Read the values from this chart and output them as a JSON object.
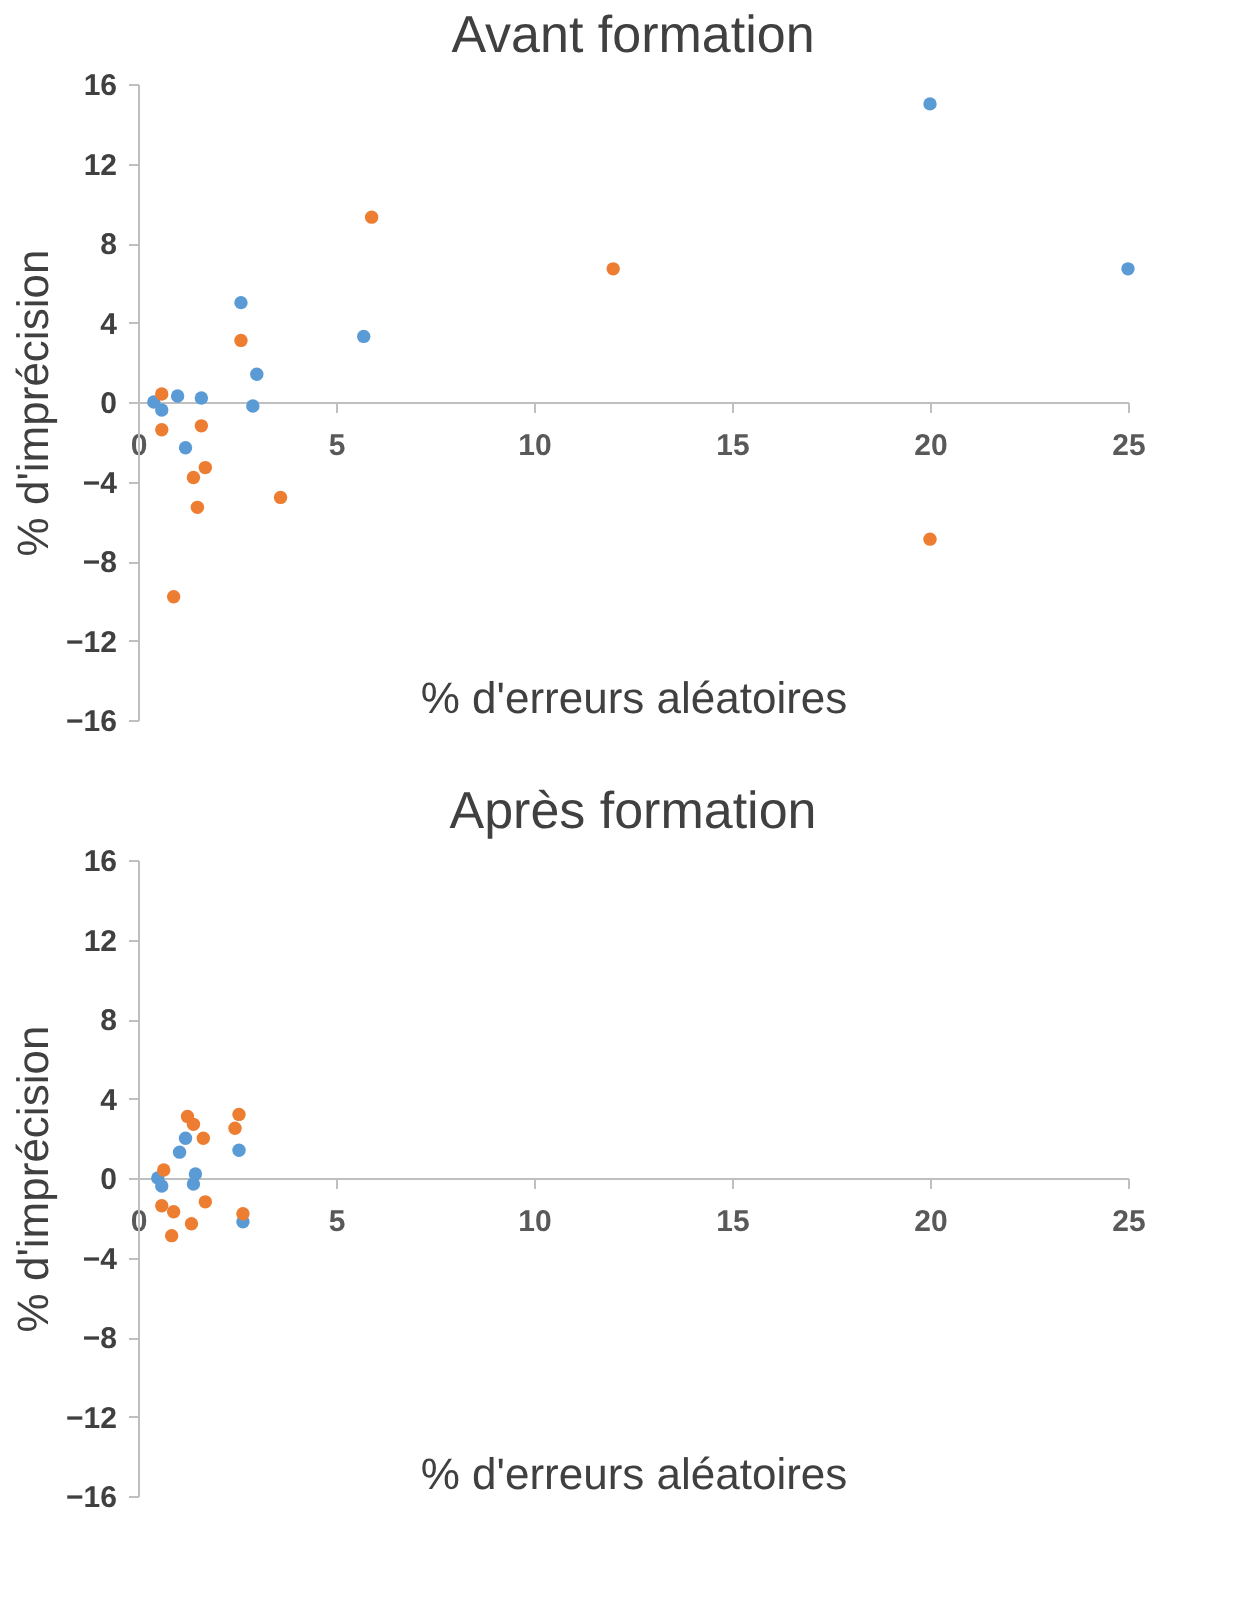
{
  "chart_data": [
    {
      "type": "scatter",
      "title": "Avant formation",
      "xlabel": "% d'erreurs aléatoires",
      "ylabel": "% d'imprécision",
      "xlim": [
        0,
        25
      ],
      "xticks": [
        0,
        5,
        10,
        15,
        20,
        25
      ],
      "ylim": [
        -16,
        16
      ],
      "yticks": [
        -16,
        -12,
        -8,
        -4,
        0,
        4,
        8,
        12,
        16
      ],
      "grid": false,
      "legend": false,
      "marker": "circle",
      "series": [
        {
          "color": "#5b9bd5",
          "x": [
            0.4,
            0.6,
            1.0,
            1.6,
            1.2,
            2.6,
            3.0,
            2.9,
            5.7,
            20,
            25
          ],
          "values": [
            0,
            -0.4,
            0.3,
            0.2,
            -2.3,
            5.0,
            1.4,
            -0.2,
            3.3,
            15.0,
            6.7
          ]
        },
        {
          "color": "#ed7d31",
          "x": [
            0.6,
            0.6,
            1.6,
            1.4,
            1.7,
            1.5,
            0.9,
            2.6,
            3.6,
            5.9,
            12,
            20
          ],
          "values": [
            0.4,
            -1.4,
            -1.2,
            -3.8,
            -3.3,
            -5.3,
            -9.8,
            3.1,
            -4.8,
            9.3,
            6.7,
            -6.9
          ]
        }
      ]
    },
    {
      "type": "scatter",
      "title": "Après formation",
      "xlabel": "% d'erreurs aléatoires",
      "ylabel": "% d'imprécision",
      "xlim": [
        0,
        25
      ],
      "xticks": [
        0,
        5,
        10,
        15,
        20,
        25
      ],
      "ylim": [
        -16,
        16
      ],
      "yticks": [
        -16,
        -12,
        -8,
        -4,
        0,
        4,
        8,
        12,
        16
      ],
      "grid": false,
      "legend": false,
      "marker": "circle",
      "series": [
        {
          "color": "#5b9bd5",
          "x": [
            0.5,
            0.6,
            1.05,
            1.2,
            1.45,
            1.4,
            2.55,
            2.65
          ],
          "values": [
            0,
            -0.4,
            1.3,
            2.0,
            0.2,
            -0.3,
            1.4,
            -2.2
          ]
        },
        {
          "color": "#ed7d31",
          "x": [
            0.65,
            1.25,
            1.4,
            1.65,
            2.55,
            2.45,
            0.6,
            0.9,
            0.85,
            1.35,
            1.7,
            2.65
          ],
          "values": [
            0.4,
            3.1,
            2.7,
            2.0,
            3.2,
            2.5,
            -1.4,
            -1.7,
            -2.9,
            -2.3,
            -1.2,
            -1.8
          ]
        }
      ]
    }
  ]
}
